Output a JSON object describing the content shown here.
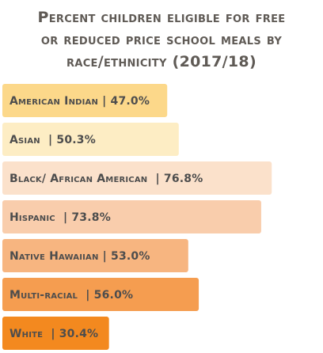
{
  "chart_data": {
    "type": "bar",
    "orientation": "horizontal",
    "title_lines": [
      "Percent children eligible for free",
      "or reduced price school meals by",
      "race/ethnicity (2017/18)"
    ],
    "categories": [
      "American Indian",
      "Asian",
      "Black/ African American",
      "Hispanic",
      "Native Hawaiian",
      "Multi-racial",
      "White"
    ],
    "labels": [
      "American Indian | 47.0%",
      "Asian  | 50.3%",
      "Black/ African American  | 76.8%",
      "Hispanic  | 73.8%",
      "Native Hawaiian | 53.0%",
      "Multi-racial  | 56.0%",
      "White  | 30.4%"
    ],
    "values": [
      47.0,
      50.3,
      76.8,
      73.8,
      53.0,
      56.0,
      30.4
    ],
    "colors": [
      "#fcd88a",
      "#fdedc4",
      "#fbe1cb",
      "#f9cdac",
      "#f7b580",
      "#f59d50",
      "#f3891f"
    ],
    "xlim": [
      0,
      100
    ],
    "grid": false,
    "legend": "none"
  }
}
